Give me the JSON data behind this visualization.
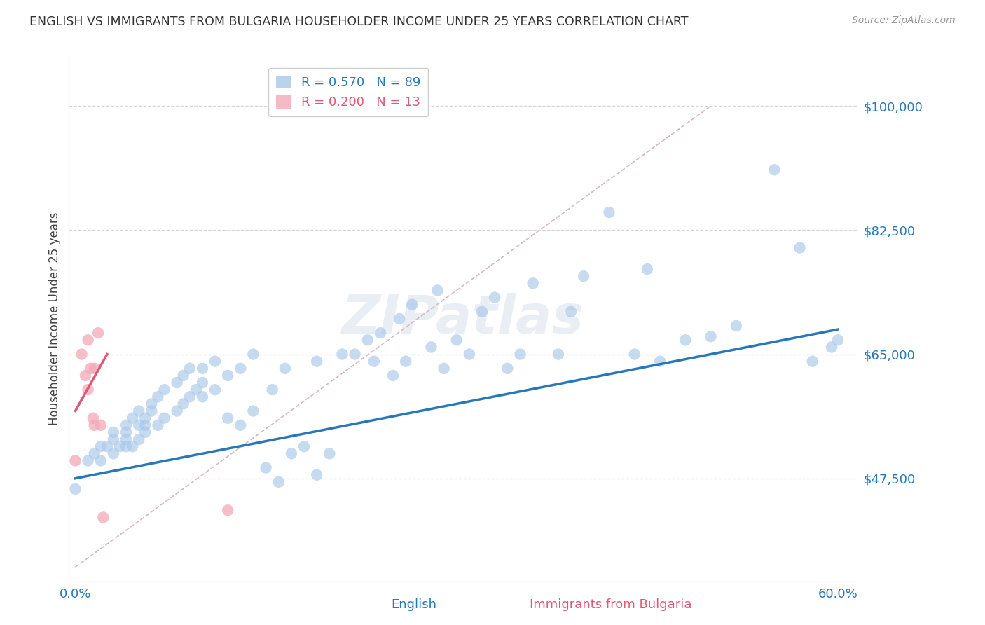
{
  "title": "ENGLISH VS IMMIGRANTS FROM BULGARIA HOUSEHOLDER INCOME UNDER 25 YEARS CORRELATION CHART",
  "source": "Source: ZipAtlas.com",
  "ylabel": "Householder Income Under 25 years",
  "xlabel_english": "English",
  "xlabel_bulgaria": "Immigrants from Bulgaria",
  "xlim": [
    -0.005,
    0.615
  ],
  "ylim": [
    33000,
    107000
  ],
  "yticks": [
    47500,
    65000,
    82500,
    100000
  ],
  "xticks": [
    0.0,
    0.1,
    0.2,
    0.3,
    0.4,
    0.5,
    0.6
  ],
  "xtick_labels": [
    "0.0%",
    "",
    "",
    "",
    "",
    "",
    "60.0%"
  ],
  "english_R": 0.57,
  "english_N": 89,
  "bulgaria_R": 0.2,
  "bulgaria_N": 13,
  "english_color": "#a8c8e8",
  "bulgaria_color": "#f4a8b8",
  "english_line_color": "#2878b8",
  "bulgaria_line_color": "#e05878",
  "diagonal_color": "#d8b8c0",
  "watermark": "ZIPatlas",
  "english_scatter_x": [
    0.0,
    0.01,
    0.015,
    0.02,
    0.02,
    0.025,
    0.03,
    0.03,
    0.03,
    0.035,
    0.04,
    0.04,
    0.04,
    0.04,
    0.045,
    0.045,
    0.05,
    0.05,
    0.05,
    0.055,
    0.055,
    0.055,
    0.06,
    0.06,
    0.065,
    0.065,
    0.07,
    0.07,
    0.08,
    0.08,
    0.085,
    0.085,
    0.09,
    0.09,
    0.095,
    0.1,
    0.1,
    0.1,
    0.11,
    0.11,
    0.12,
    0.12,
    0.13,
    0.13,
    0.14,
    0.14,
    0.15,
    0.155,
    0.16,
    0.165,
    0.17,
    0.18,
    0.19,
    0.19,
    0.2,
    0.21,
    0.22,
    0.23,
    0.235,
    0.24,
    0.25,
    0.255,
    0.26,
    0.265,
    0.28,
    0.285,
    0.29,
    0.3,
    0.31,
    0.32,
    0.33,
    0.34,
    0.35,
    0.36,
    0.38,
    0.39,
    0.4,
    0.42,
    0.44,
    0.45,
    0.46,
    0.48,
    0.5,
    0.52,
    0.55,
    0.57,
    0.58,
    0.595,
    0.6
  ],
  "english_scatter_y": [
    46000,
    50000,
    51000,
    52000,
    50000,
    52000,
    51000,
    53000,
    54000,
    52000,
    52000,
    53000,
    54000,
    55000,
    52000,
    56000,
    53000,
    55000,
    57000,
    54000,
    55000,
    56000,
    57000,
    58000,
    55000,
    59000,
    56000,
    60000,
    57000,
    61000,
    58000,
    62000,
    59000,
    63000,
    60000,
    59000,
    61000,
    63000,
    60000,
    64000,
    56000,
    62000,
    55000,
    63000,
    57000,
    65000,
    49000,
    60000,
    47000,
    63000,
    51000,
    52000,
    48000,
    64000,
    51000,
    65000,
    65000,
    67000,
    64000,
    68000,
    62000,
    70000,
    64000,
    72000,
    66000,
    74000,
    63000,
    67000,
    65000,
    71000,
    73000,
    63000,
    65000,
    75000,
    65000,
    71000,
    76000,
    85000,
    65000,
    77000,
    64000,
    67000,
    67500,
    69000,
    91000,
    80000,
    64000,
    66000,
    67000
  ],
  "bulgaria_scatter_x": [
    0.0,
    0.005,
    0.008,
    0.01,
    0.01,
    0.012,
    0.014,
    0.015,
    0.015,
    0.018,
    0.02,
    0.022,
    0.12
  ],
  "bulgaria_scatter_y": [
    50000,
    65000,
    62000,
    67000,
    60000,
    63000,
    56000,
    63000,
    55000,
    68000,
    55000,
    42000,
    43000
  ],
  "english_line_x": [
    0.0,
    0.6
  ],
  "english_line_y": [
    47500,
    68500
  ],
  "bulgaria_line_x": [
    0.0,
    0.025
  ],
  "bulgaria_line_y": [
    57000,
    65000
  ],
  "diag_line_x": [
    0.0,
    0.5
  ],
  "diag_line_y": [
    35000,
    100000
  ]
}
